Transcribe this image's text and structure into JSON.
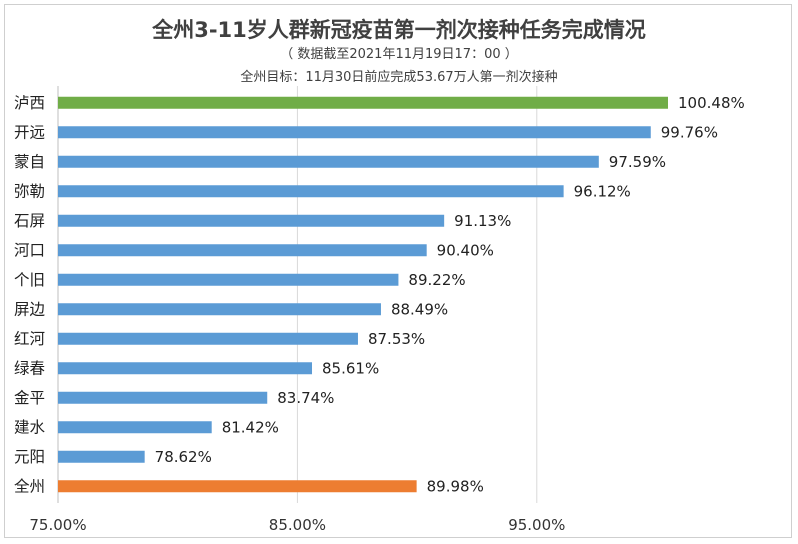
{
  "chart_data": {
    "type": "bar",
    "orientation": "horizontal",
    "title": "全州3-11岁人群新冠疫苗第一剂次接种任务完成情况",
    "subtitle": "（ 数据截至2021年11月19日17：00 ）",
    "note": "全州目标：11月30日前应完成53.67万人第一剂次接种",
    "categories": [
      "泸西",
      "开远",
      "蒙自",
      "弥勒",
      "石屏",
      "河口",
      "个旧",
      "屏边",
      "红河",
      "绿春",
      "金平",
      "建水",
      "元阳",
      "全州"
    ],
    "values": [
      100.48,
      99.76,
      97.59,
      96.12,
      91.13,
      90.4,
      89.22,
      88.49,
      87.53,
      85.61,
      83.74,
      81.42,
      78.62,
      89.98
    ],
    "value_labels": [
      "100.48%",
      "99.76%",
      "97.59%",
      "96.12%",
      "91.13%",
      "90.40%",
      "89.22%",
      "88.49%",
      "87.53%",
      "85.61%",
      "83.74%",
      "81.42%",
      "78.62%",
      "89.98%"
    ],
    "bar_colors": [
      "#70ad47",
      "#5b9bd5",
      "#5b9bd5",
      "#5b9bd5",
      "#5b9bd5",
      "#5b9bd5",
      "#5b9bd5",
      "#5b9bd5",
      "#5b9bd5",
      "#5b9bd5",
      "#5b9bd5",
      "#5b9bd5",
      "#5b9bd5",
      "#ed7d31"
    ],
    "xlim": [
      75,
      100.48
    ],
    "x_ticks": [
      75,
      85,
      95
    ],
    "x_tick_labels": [
      "75.00%",
      "85.00%",
      "95.00%"
    ],
    "grid": "vertical",
    "legend": "none"
  }
}
